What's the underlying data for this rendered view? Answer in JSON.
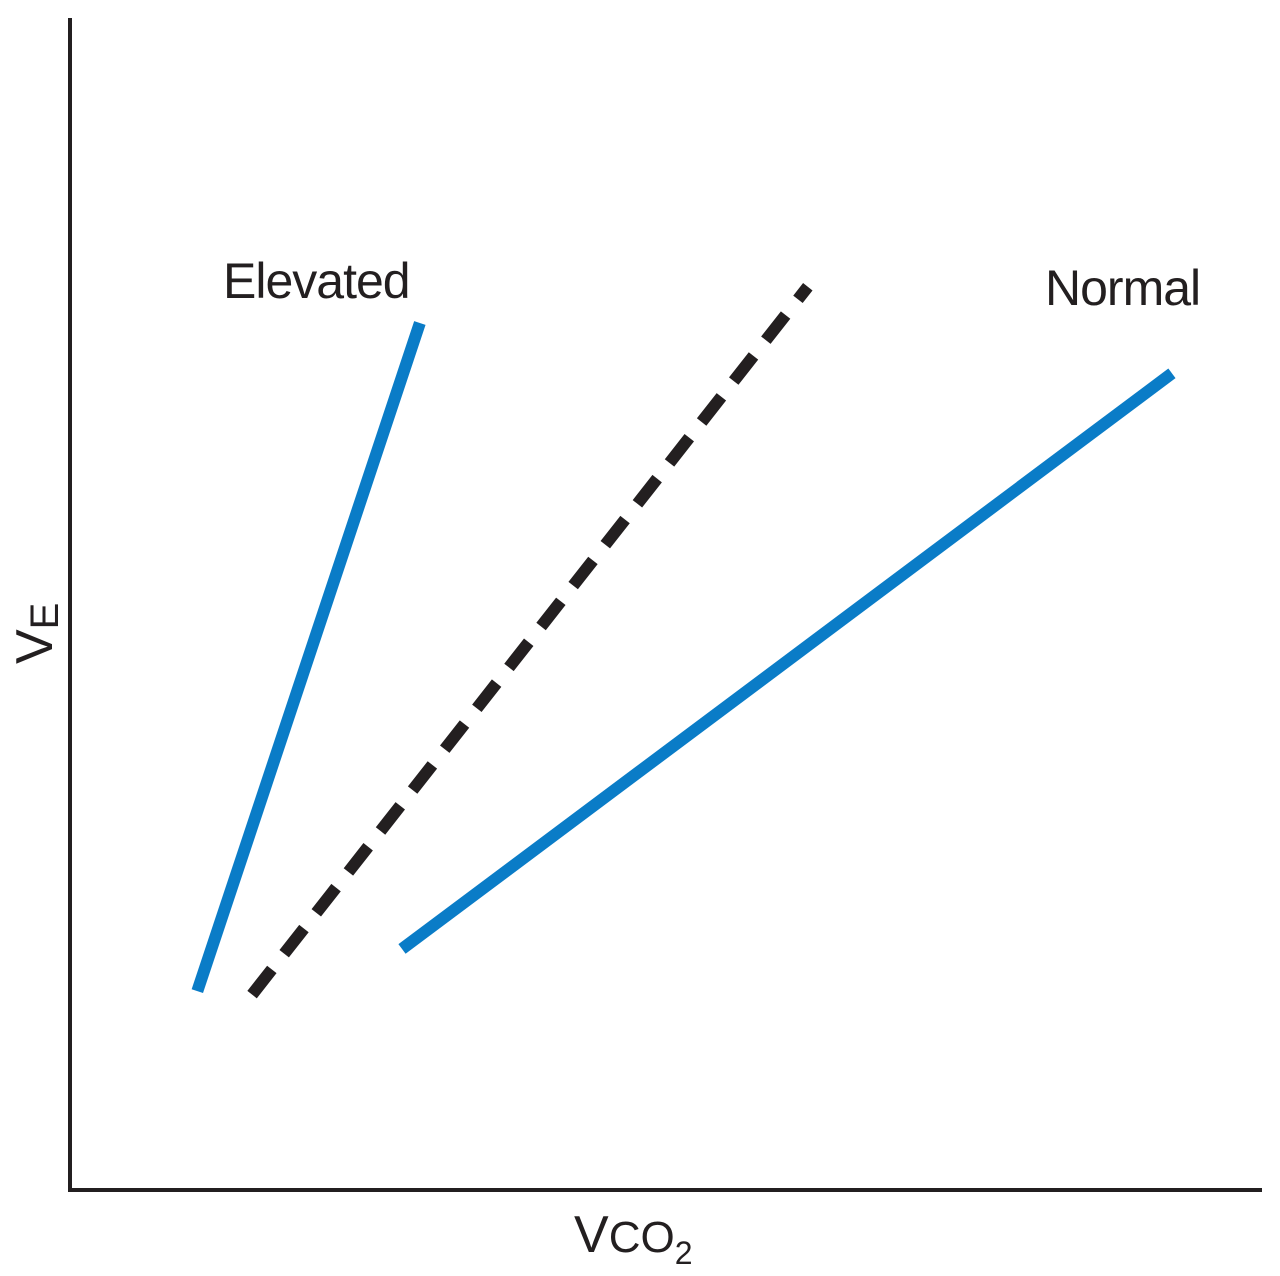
{
  "chart_data": {
    "type": "line",
    "title": "",
    "xlabel": {
      "main": "V",
      "sub_main": "CO",
      "subscript": "2"
    },
    "ylabel": {
      "main": "V",
      "subscript": "E"
    },
    "xlim": [
      0,
      100
    ],
    "ylim": [
      0,
      100
    ],
    "grid": false,
    "ticks": false,
    "series": [
      {
        "name": "Elevated",
        "style": "solid",
        "color": "#0a7cc7",
        "points": [
          [
            10.7,
            17.0
          ],
          [
            29.4,
            74.1
          ]
        ]
      },
      {
        "name": "",
        "style": "dashed",
        "color": "#231f20",
        "points": [
          [
            15.3,
            16.7
          ],
          [
            62.0,
            77.2
          ]
        ]
      },
      {
        "name": "Normal",
        "style": "solid",
        "color": "#0a7cc7",
        "points": [
          [
            27.9,
            20.6
          ],
          [
            92.6,
            69.8
          ]
        ]
      }
    ]
  }
}
